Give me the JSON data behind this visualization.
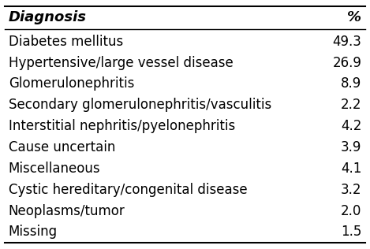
{
  "header": [
    "Diagnosis",
    "%"
  ],
  "rows": [
    [
      "Diabetes mellitus",
      "49.3"
    ],
    [
      "Hypertensive/large vessel disease",
      "26.9"
    ],
    [
      "Glomerulonephritis",
      "8.9"
    ],
    [
      "Secondary glomerulonephritis/vasculitis",
      "2.2"
    ],
    [
      "Interstitial nephritis/pyelonephritis",
      "4.2"
    ],
    [
      "Cause uncertain",
      "3.9"
    ],
    [
      "Miscellaneous",
      "4.1"
    ],
    [
      "Cystic hereditary/congenital disease",
      "3.2"
    ],
    [
      "Neoplasms/tumor",
      "2.0"
    ],
    [
      "Missing",
      "1.5"
    ]
  ],
  "header_fontsize": 13,
  "row_fontsize": 12,
  "fig_width": 4.69,
  "fig_height": 3.16,
  "background_color": "#ffffff",
  "text_color": "#000000",
  "line_color": "#000000"
}
